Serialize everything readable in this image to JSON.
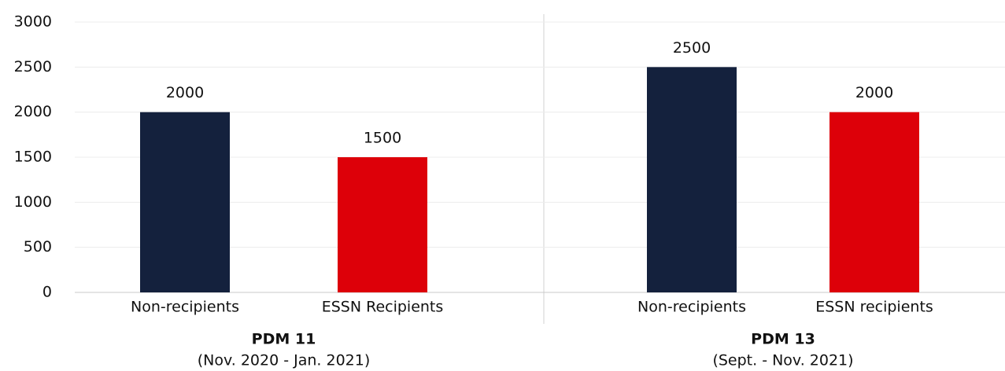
{
  "chart_data": {
    "type": "bar",
    "categories": [
      "Non-recipients",
      "ESSN Recipients",
      "Non-recipients",
      "ESSN recipients"
    ],
    "values": [
      2000,
      1500,
      2500,
      2000
    ],
    "colors": [
      "#14213d",
      "#dd0009",
      "#14213d",
      "#dd0009"
    ],
    "groups": [
      {
        "name": "PDM 11",
        "subtitle": "(Nov. 2020 - Jan. 2021)"
      },
      {
        "name": "PDM 13",
        "subtitle": "(Sept. - Nov. 2021)"
      }
    ],
    "ylim": [
      0,
      3000
    ],
    "yticks": [
      0,
      500,
      1000,
      1500,
      2000,
      2500,
      3000
    ],
    "grid": true
  }
}
